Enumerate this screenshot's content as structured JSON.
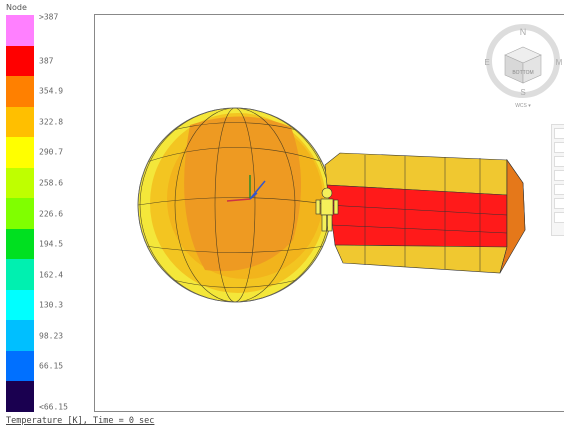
{
  "legend": {
    "title": "Node",
    "entries": [
      {
        "label": ">387",
        "color": "#ff80ff"
      },
      {
        "label": "387",
        "color": "#ff0000"
      },
      {
        "label": "354.9",
        "color": "#ff8000"
      },
      {
        "label": "322.8",
        "color": "#ffbf00"
      },
      {
        "label": "290.7",
        "color": "#ffff00"
      },
      {
        "label": "258.6",
        "color": "#bfff00"
      },
      {
        "label": "226.6",
        "color": "#80ff00"
      },
      {
        "label": "194.5",
        "color": "#00e020"
      },
      {
        "label": "162.4",
        "color": "#00f0b0"
      },
      {
        "label": "130.3",
        "color": "#00ffff"
      },
      {
        "label": "98.23",
        "color": "#00bfff"
      },
      {
        "label": "66.15",
        "color": "#0070ff"
      },
      {
        "label": "<66.15",
        "color": "#1a0050"
      }
    ]
  },
  "caption": "Temperature [K], Time = 0 sec",
  "view_cube": {
    "face_label": "BOTTOM",
    "compass": {
      "north": "N",
      "south": "S",
      "east": "M",
      "west": "E"
    },
    "mode_label": "WCS ▾"
  },
  "icons": [
    "axis-triad-icon",
    "human-scale-icon",
    "view-cube-icon"
  ]
}
